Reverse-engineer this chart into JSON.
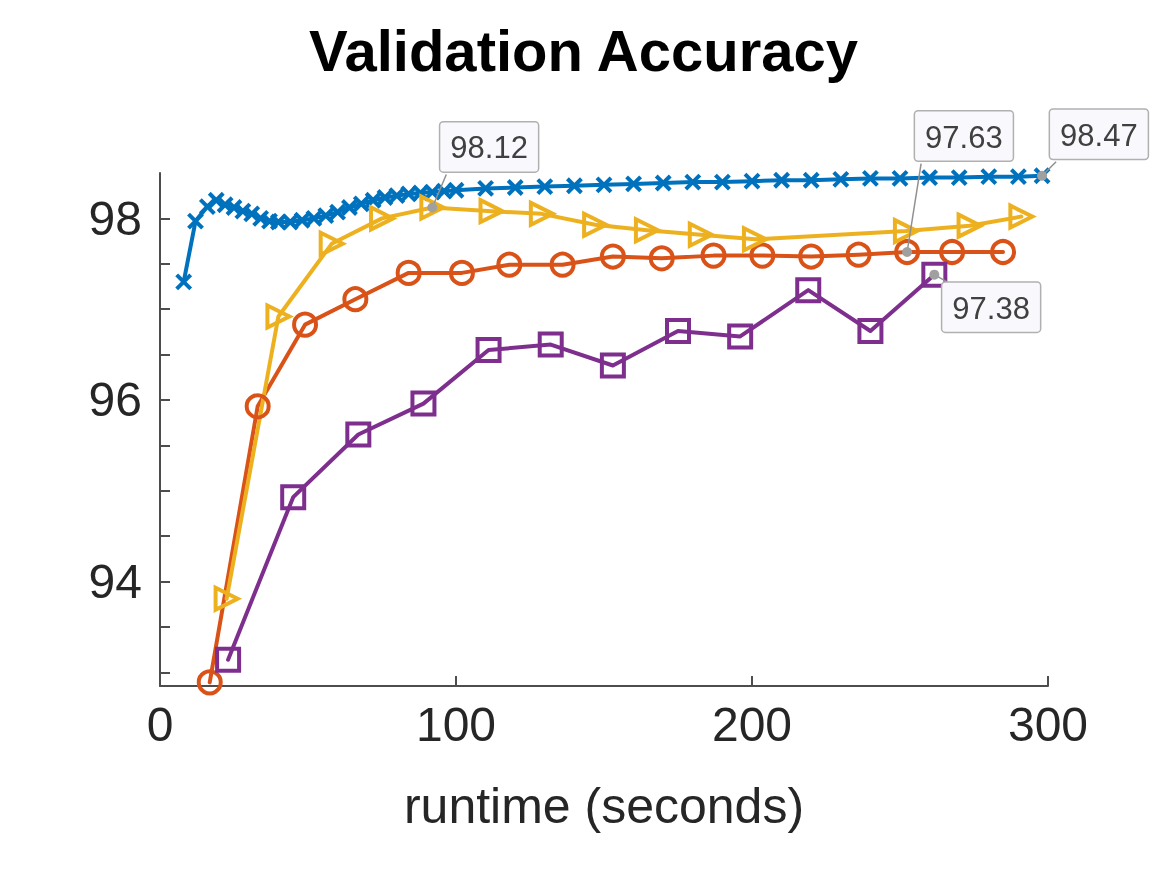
{
  "chart_data": {
    "type": "line",
    "title": "Validation Accuracy",
    "xlabel": "runtime (seconds)",
    "xlim": [
      0,
      300
    ],
    "xticks": [
      0,
      100,
      200,
      300
    ],
    "ylim": [
      92.85,
      98.5
    ],
    "yticks": [
      {
        "value": 93,
        "label": null
      },
      {
        "value": 93.5,
        "label": null
      },
      94,
      {
        "value": 94.5,
        "label": null
      },
      {
        "value": 95,
        "label": null
      },
      {
        "value": 95.5,
        "label": null
      },
      96,
      {
        "value": 96.5,
        "label": null
      },
      {
        "value": 97,
        "label": null
      },
      {
        "value": 97.5,
        "label": null
      },
      98
    ],
    "grid": false,
    "line_style": "solid",
    "series": [
      {
        "color": "#0072bd",
        "marker": "cross",
        "x": [
          8,
          12,
          16,
          19,
          22,
          25,
          28,
          31,
          34,
          37,
          40,
          44,
          48,
          52,
          56,
          60,
          64,
          68,
          72,
          76,
          80,
          84,
          88,
          92,
          96,
          100,
          110,
          120,
          130,
          140,
          150,
          160,
          170,
          180,
          190,
          200,
          210,
          220,
          230,
          240,
          250,
          260,
          270,
          280,
          290,
          298
        ],
        "values": [
          97.3,
          97.97,
          98.13,
          98.2,
          98.15,
          98.12,
          98.08,
          98.05,
          98.0,
          97.97,
          97.96,
          97.96,
          97.98,
          98.0,
          98.03,
          98.07,
          98.12,
          98.16,
          98.2,
          98.23,
          98.25,
          98.27,
          98.28,
          98.29,
          98.3,
          98.31,
          98.33,
          98.34,
          98.35,
          98.36,
          98.37,
          98.38,
          98.39,
          98.4,
          98.4,
          98.41,
          98.42,
          98.42,
          98.43,
          98.44,
          98.44,
          98.45,
          98.45,
          98.46,
          98.46,
          98.47
        ]
      },
      {
        "color": "#d95319",
        "marker": "circle",
        "x": [
          16.8,
          33,
          49,
          66,
          84,
          102,
          118,
          136,
          153,
          169.5,
          187,
          203.5,
          220,
          236,
          252.4,
          267.6,
          284.8
        ],
        "values": [
          92.89,
          95.93,
          96.83,
          97.11,
          97.4,
          97.4,
          97.49,
          97.49,
          97.58,
          97.56,
          97.59,
          97.59,
          97.58,
          97.6,
          97.63,
          97.63,
          97.63
        ]
      },
      {
        "color": "#edb120",
        "marker": "triangle",
        "x": [
          22.5,
          40,
          58,
          75,
          92,
          112,
          129,
          147,
          164.5,
          182.7,
          201,
          252,
          273.5,
          291
        ],
        "values": [
          93.81,
          96.92,
          97.72,
          98.0,
          98.12,
          98.08,
          98.05,
          97.93,
          97.87,
          97.82,
          97.77,
          97.86,
          97.92,
          98.02
        ]
      },
      {
        "color": "#7e2f8e",
        "marker": "square",
        "x": [
          23,
          45,
          67,
          89,
          111,
          132,
          153,
          175,
          196,
          219,
          240,
          261.6
        ],
        "values": [
          93.14,
          94.93,
          95.62,
          95.96,
          96.55,
          96.61,
          96.38,
          96.76,
          96.7,
          97.21,
          96.76,
          97.38
        ]
      }
    ],
    "annotations": [
      {
        "text": "98.12",
        "x": 92,
        "y": 98.12
      },
      {
        "text": "98.47",
        "x": 298,
        "y": 98.47
      },
      {
        "text": "97.63",
        "x": 252.4,
        "y": 97.63
      },
      {
        "text": "97.38",
        "x": 261.6,
        "y": 97.38
      }
    ]
  }
}
